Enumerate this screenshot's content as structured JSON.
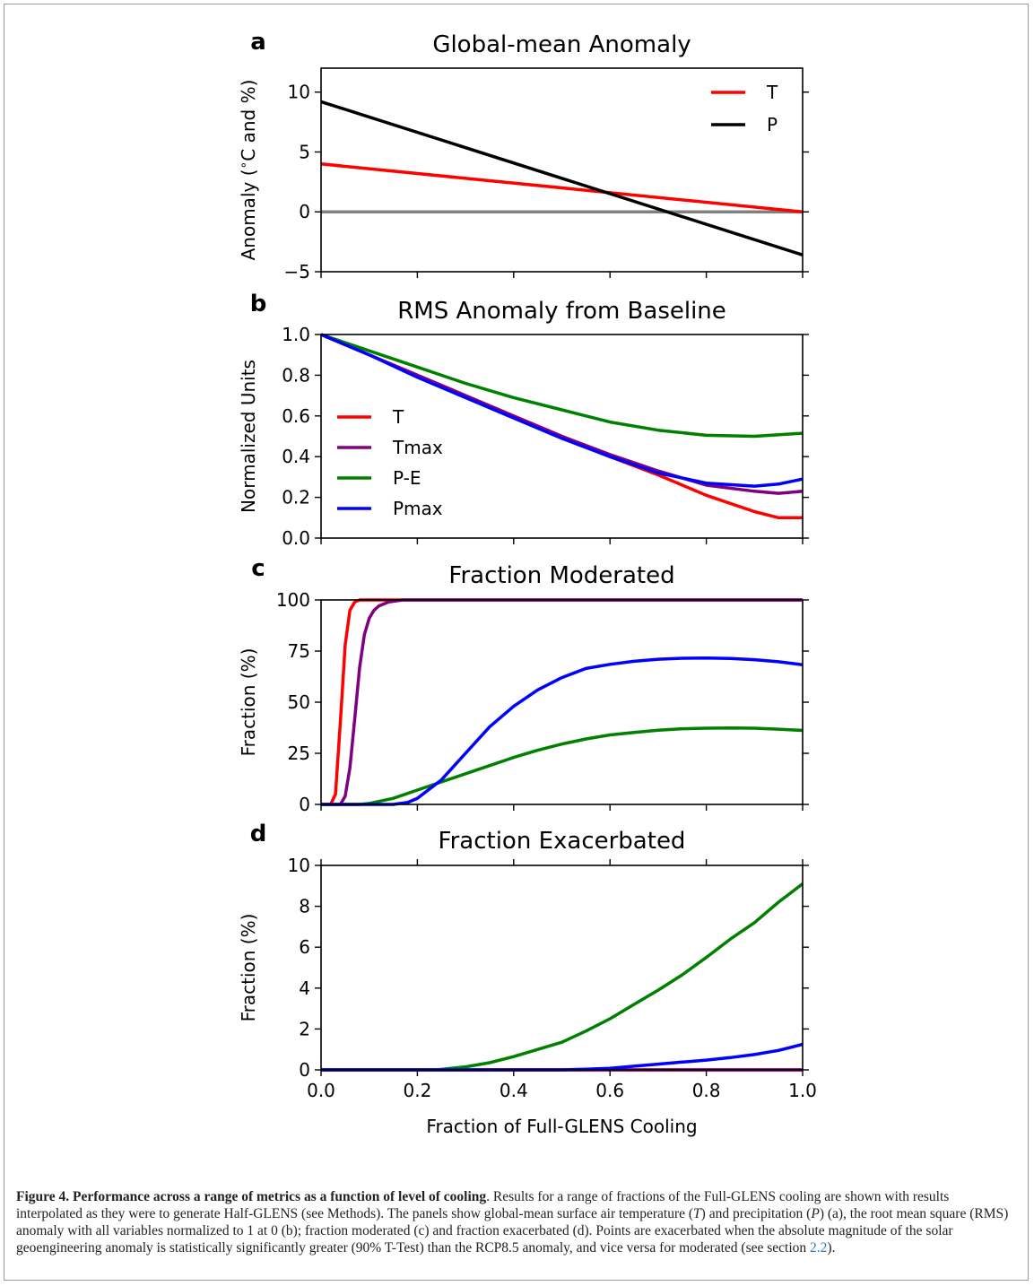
{
  "figure": {
    "caption": {
      "label": "Figure 4.",
      "title": "Performance across a range of metrics as a function of level of cooling",
      "text_1": ". Results for a range of fractions of the Full-GLENS cooling are shown with results interpolated as they were to generate Half-GLENS (see Methods). The panels show global-mean surface air temperature (",
      "sym_T": "T",
      "text_2": ") and precipitation (",
      "sym_P": "P",
      "text_3": ") (a), the root mean square (RMS) anomaly with all variables normalized to 1 at 0 (b); fraction moderated (c) and fraction exacerbated (d). Points are exacerbated when the absolute magnitude of the solar geoengineering anomaly is statistically significantly greater (90% T-Test) than the RCP8.5 anomaly, and vice versa for moderated (see section ",
      "link": "2.2",
      "text_4": ")."
    },
    "colors": {
      "T": "#ff0000",
      "Tmax": "#800080",
      "P-E": "#008000",
      "Pmax": "#0000ff",
      "P": "#000000",
      "zero_line": "#808080"
    }
  },
  "chart_data": [
    {
      "type": "line",
      "panel": "a",
      "title": "Global-mean Anomaly",
      "ylabel": "Anomaly ($^\\circ$C and %)",
      "xlabel": "",
      "xlim": [
        0,
        1
      ],
      "ylim": [
        -5,
        12
      ],
      "yticks": [
        -5,
        0,
        5,
        10
      ],
      "ytick_labels": [
        "−5",
        "0",
        "5",
        "10"
      ],
      "legend_position": "top-right",
      "series": [
        {
          "name": "T",
          "color": "#ff0000",
          "x": [
            0,
            1
          ],
          "y": [
            4.0,
            0.0
          ]
        },
        {
          "name": "P",
          "color": "#000000",
          "x": [
            0,
            1
          ],
          "y": [
            9.2,
            -3.6
          ]
        }
      ],
      "reference_line": {
        "y": 0,
        "color": "#808080"
      }
    },
    {
      "type": "line",
      "panel": "b",
      "title": "RMS Anomaly from Baseline",
      "ylabel": "Normalized Units",
      "xlabel": "",
      "xlim": [
        0,
        1
      ],
      "ylim": [
        0,
        1
      ],
      "yticks": [
        0,
        0.2,
        0.4,
        0.6,
        0.8,
        1.0
      ],
      "ytick_labels": [
        "0.0",
        "0.2",
        "0.4",
        "0.6",
        "0.8",
        "1.0"
      ],
      "legend_position": "center-left",
      "series": [
        {
          "name": "T",
          "color": "#ff0000",
          "x": [
            0,
            0.1,
            0.2,
            0.3,
            0.4,
            0.5,
            0.6,
            0.7,
            0.8,
            0.9,
            0.95,
            1.0
          ],
          "y": [
            1.0,
            0.9,
            0.8,
            0.7,
            0.6,
            0.5,
            0.4,
            0.31,
            0.21,
            0.13,
            0.1,
            0.1
          ]
        },
        {
          "name": "Tmax",
          "color": "#800080",
          "x": [
            0,
            0.1,
            0.2,
            0.3,
            0.4,
            0.5,
            0.6,
            0.7,
            0.8,
            0.9,
            0.95,
            1.0
          ],
          "y": [
            1.0,
            0.9,
            0.8,
            0.7,
            0.6,
            0.5,
            0.41,
            0.33,
            0.26,
            0.23,
            0.22,
            0.23
          ]
        },
        {
          "name": "P-E",
          "color": "#008000",
          "x": [
            0,
            0.1,
            0.2,
            0.3,
            0.4,
            0.5,
            0.6,
            0.7,
            0.8,
            0.9,
            1.0
          ],
          "y": [
            1.0,
            0.92,
            0.84,
            0.76,
            0.69,
            0.63,
            0.57,
            0.53,
            0.505,
            0.5,
            0.515
          ]
        },
        {
          "name": "Pmax",
          "color": "#0000ff",
          "x": [
            0,
            0.1,
            0.2,
            0.3,
            0.4,
            0.5,
            0.6,
            0.7,
            0.8,
            0.9,
            0.95,
            1.0
          ],
          "y": [
            1.0,
            0.9,
            0.79,
            0.69,
            0.59,
            0.49,
            0.4,
            0.32,
            0.27,
            0.255,
            0.265,
            0.29
          ]
        }
      ]
    },
    {
      "type": "line",
      "panel": "c",
      "title": "Fraction Moderated",
      "ylabel": "Fraction (%)",
      "xlabel": "",
      "xlim": [
        0,
        1
      ],
      "ylim": [
        0,
        100
      ],
      "yticks": [
        0,
        25,
        50,
        75,
        100
      ],
      "ytick_labels": [
        "0",
        "25",
        "50",
        "75",
        "100"
      ],
      "series": [
        {
          "name": "T",
          "color": "#ff0000",
          "x": [
            0,
            0.02,
            0.03,
            0.04,
            0.05,
            0.06,
            0.07,
            0.08,
            0.1,
            0.5,
            1.0
          ],
          "y": [
            0,
            0,
            5,
            40,
            78,
            95,
            99,
            100,
            100,
            100,
            100
          ]
        },
        {
          "name": "Tmax",
          "color": "#800080",
          "x": [
            0,
            0.04,
            0.05,
            0.06,
            0.07,
            0.08,
            0.09,
            0.1,
            0.11,
            0.12,
            0.14,
            0.17,
            0.2,
            0.5,
            1.0
          ],
          "y": [
            0,
            0,
            4,
            18,
            42,
            67,
            83,
            91,
            95,
            97,
            99,
            100,
            100,
            100,
            100
          ]
        },
        {
          "name": "P-E",
          "color": "#008000",
          "x": [
            0,
            0.08,
            0.1,
            0.15,
            0.2,
            0.25,
            0.3,
            0.35,
            0.4,
            0.45,
            0.5,
            0.55,
            0.6,
            0.65,
            0.7,
            0.75,
            0.8,
            0.85,
            0.9,
            0.95,
            1.0
          ],
          "y": [
            0,
            0,
            0.5,
            3,
            7,
            11,
            15,
            19,
            23,
            26.5,
            29.5,
            32,
            34,
            35.2,
            36.3,
            37,
            37.3,
            37.4,
            37.3,
            36.8,
            36.2
          ]
        },
        {
          "name": "Pmax",
          "color": "#0000ff",
          "x": [
            0,
            0.15,
            0.18,
            0.2,
            0.25,
            0.3,
            0.35,
            0.4,
            0.45,
            0.5,
            0.55,
            0.6,
            0.65,
            0.7,
            0.75,
            0.8,
            0.85,
            0.9,
            0.95,
            1.0
          ],
          "y": [
            0,
            0,
            1,
            3,
            12,
            25,
            38,
            48,
            56,
            62,
            66.5,
            68.5,
            70,
            71,
            71.5,
            71.6,
            71.4,
            70.8,
            69.8,
            68.3
          ]
        }
      ]
    },
    {
      "type": "line",
      "panel": "d",
      "title": "Fraction Exacerbated",
      "ylabel": "Fraction (%)",
      "xlabel": "Fraction of Full-GLENS Cooling",
      "xlim": [
        0,
        1
      ],
      "ylim": [
        0,
        10
      ],
      "xticks": [
        0,
        0.2,
        0.4,
        0.6,
        0.8,
        1.0
      ],
      "xtick_labels": [
        "0.0",
        "0.2",
        "0.4",
        "0.6",
        "0.8",
        "1.0"
      ],
      "yticks": [
        0,
        2,
        4,
        6,
        8,
        10
      ],
      "ytick_labels": [
        "0",
        "2",
        "4",
        "6",
        "8",
        "10"
      ],
      "series": [
        {
          "name": "T",
          "color": "#ff0000",
          "x": [
            0,
            1
          ],
          "y": [
            0,
            0
          ]
        },
        {
          "name": "Tmax",
          "color": "#800080",
          "x": [
            0,
            1
          ],
          "y": [
            0,
            0
          ]
        },
        {
          "name": "P-E",
          "color": "#008000",
          "x": [
            0,
            0.24,
            0.3,
            0.35,
            0.4,
            0.45,
            0.5,
            0.55,
            0.6,
            0.65,
            0.7,
            0.75,
            0.8,
            0.85,
            0.9,
            0.95,
            1.0
          ],
          "y": [
            0,
            0,
            0.15,
            0.35,
            0.65,
            1.0,
            1.35,
            1.9,
            2.5,
            3.2,
            3.9,
            4.65,
            5.5,
            6.4,
            7.2,
            8.2,
            9.1
          ]
        },
        {
          "name": "Pmax",
          "color": "#0000ff",
          "x": [
            0,
            0.5,
            0.55,
            0.6,
            0.65,
            0.7,
            0.75,
            0.8,
            0.85,
            0.9,
            0.95,
            1.0
          ],
          "y": [
            0,
            0,
            0.03,
            0.08,
            0.18,
            0.28,
            0.38,
            0.48,
            0.6,
            0.75,
            0.95,
            1.25
          ]
        }
      ]
    }
  ]
}
